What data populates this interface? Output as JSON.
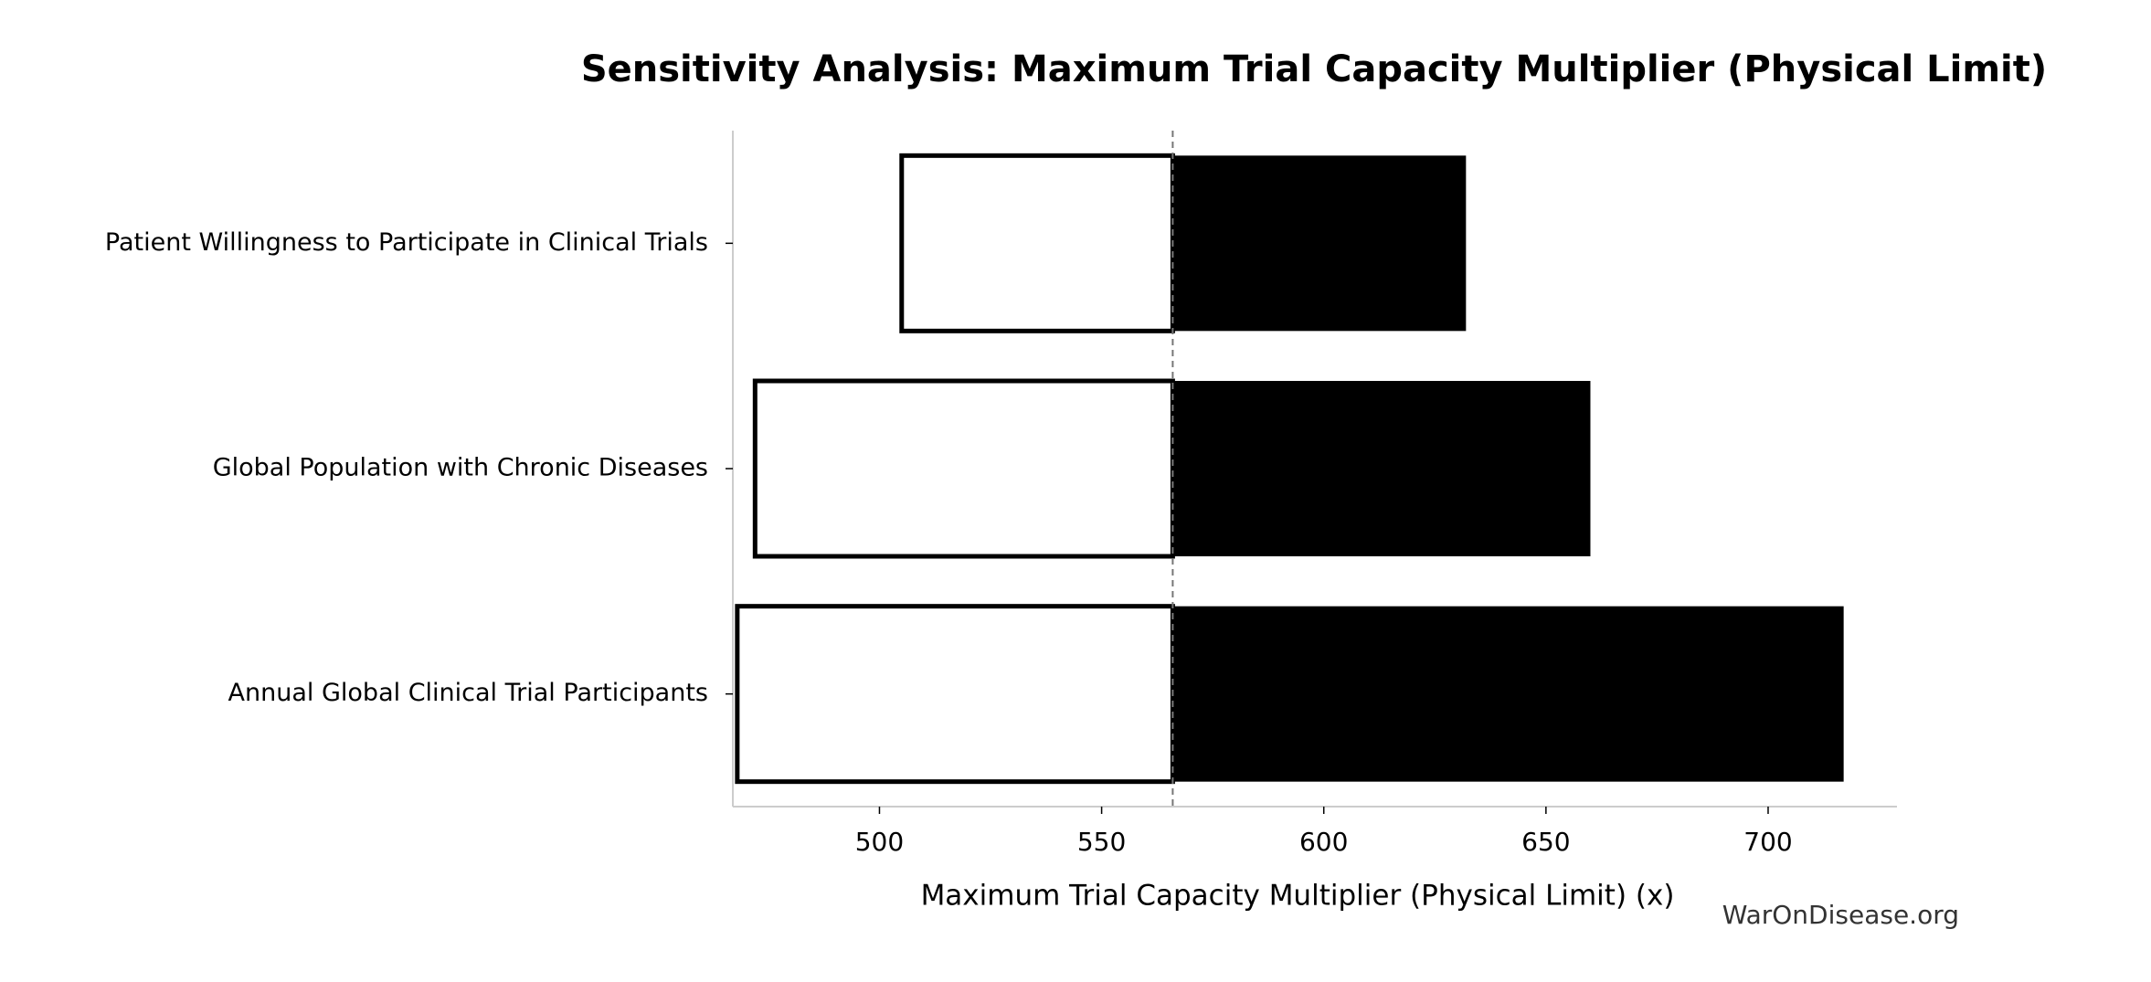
{
  "chart_data": {
    "type": "tornado",
    "title": "Sensitivity Analysis: Maximum Trial Capacity Multiplier (Physical Limit)",
    "x_label": "Maximum Trial Capacity Multiplier (Physical Limit) (x)",
    "watermark": "WarOnDisease.org",
    "categories": [
      "Patient Willingness to Participate in Clinical Trials",
      "Global Population with Chronic Diseases",
      "Annual Global Clinical Trial Participants"
    ],
    "baseline": 566,
    "series": [
      {
        "color": "#ffffff",
        "values": [
          505,
          472,
          468
        ]
      },
      {
        "color": "#000000",
        "values": [
          632,
          660,
          717
        ]
      }
    ],
    "xlim": [
      467,
      729
    ],
    "xticks": [
      500,
      550,
      600,
      650,
      700
    ]
  }
}
